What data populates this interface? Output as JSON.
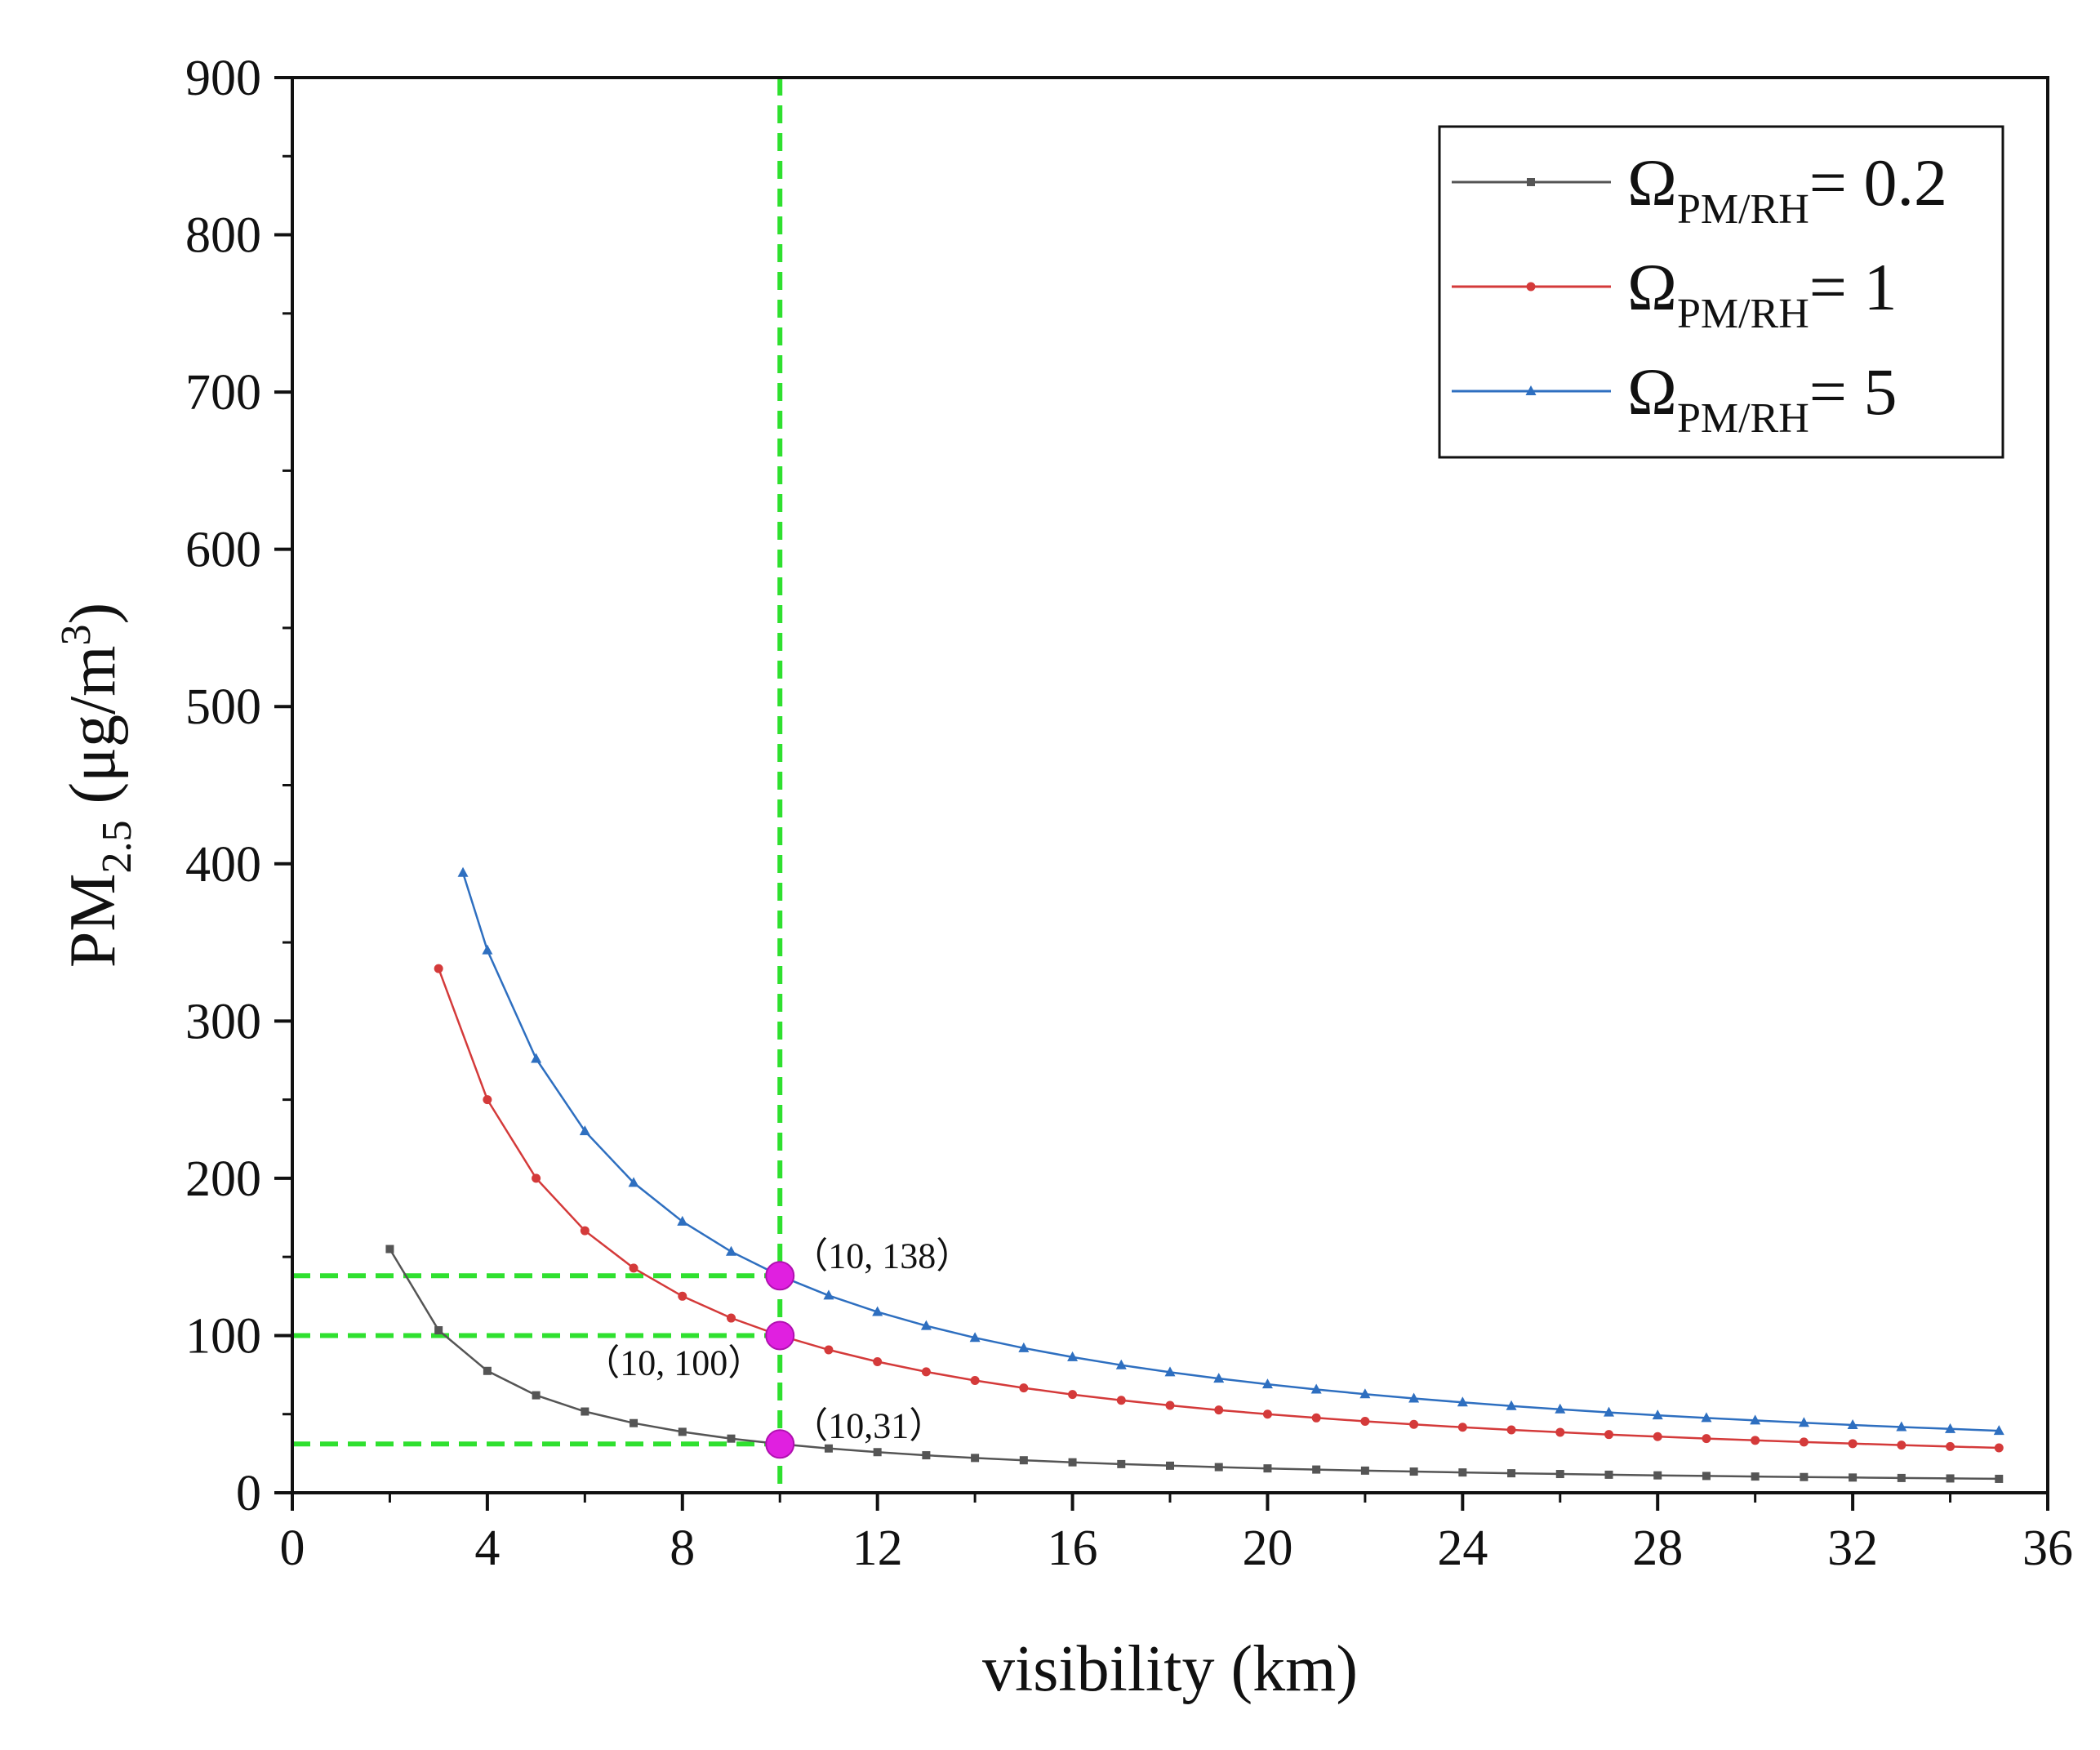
{
  "chart_data": {
    "type": "line",
    "xlabel": "visibility (km)",
    "ylabel": {
      "base": "PM",
      "sub": "2.5",
      "unit_pre": " (μg/m",
      "unit_sup": "3",
      "unit_post": ")"
    },
    "xlim": [
      0,
      36
    ],
    "ylim": [
      0,
      900
    ],
    "x_ticks": [
      0,
      4,
      8,
      12,
      16,
      20,
      24,
      28,
      32,
      36
    ],
    "y_ticks": [
      0,
      100,
      200,
      300,
      400,
      500,
      600,
      700,
      800,
      900
    ],
    "grid": false,
    "legend_position": "top-right",
    "series": [
      {
        "name": "Ω_PM/RH = 0.2",
        "legend": {
          "symbol": "Ω",
          "sub": "PM/RH",
          "value": "= 0.2"
        },
        "color": "#555555",
        "marker": "square",
        "coefficient": 310,
        "x": [
          2,
          3,
          4,
          5,
          6,
          7,
          8,
          9,
          10,
          11,
          12,
          13,
          14,
          15,
          16,
          17,
          18,
          19,
          20,
          21,
          22,
          23,
          24,
          25,
          26,
          27,
          28,
          29,
          30,
          31,
          32,
          33,
          34,
          35
        ]
      },
      {
        "name": "Ω_PM/RH = 1",
        "legend": {
          "symbol": "Ω",
          "sub": "PM/RH",
          "value": "= 1"
        },
        "color": "#d43a3a",
        "marker": "circle",
        "coefficient": 1000,
        "x": [
          3,
          4,
          5,
          6,
          7,
          8,
          9,
          10,
          11,
          12,
          13,
          14,
          15,
          16,
          17,
          18,
          19,
          20,
          21,
          22,
          23,
          24,
          25,
          26,
          27,
          28,
          29,
          30,
          31,
          32,
          33,
          34,
          35
        ]
      },
      {
        "name": "Ω_PM/RH = 5",
        "legend": {
          "symbol": "Ω",
          "sub": "PM/RH",
          "value": "= 5"
        },
        "color": "#2e6fc0",
        "marker": "triangle",
        "coefficient": 1380,
        "x": [
          3.5,
          4,
          5,
          6,
          7,
          8,
          9,
          10,
          11,
          12,
          13,
          14,
          15,
          16,
          17,
          18,
          19,
          20,
          21,
          22,
          23,
          24,
          25,
          26,
          27,
          28,
          29,
          30,
          31,
          32,
          33,
          34,
          35
        ]
      }
    ],
    "guide_lines": {
      "color": "#2fe02f",
      "vertical_x": 10,
      "horizontal_y": [
        138,
        100,
        31
      ]
    },
    "highlight_points": {
      "color": "#e020e0",
      "points": [
        {
          "x": 10,
          "y": 138
        },
        {
          "x": 10,
          "y": 100
        },
        {
          "x": 10,
          "y": 31
        }
      ]
    },
    "annotations": [
      {
        "text": "（10, 138）",
        "x": 10,
        "y": 138
      },
      {
        "text": "（10, 100）",
        "x": 10,
        "y": 100
      },
      {
        "text": "（10,31）",
        "x": 10,
        "y": 31
      }
    ]
  }
}
